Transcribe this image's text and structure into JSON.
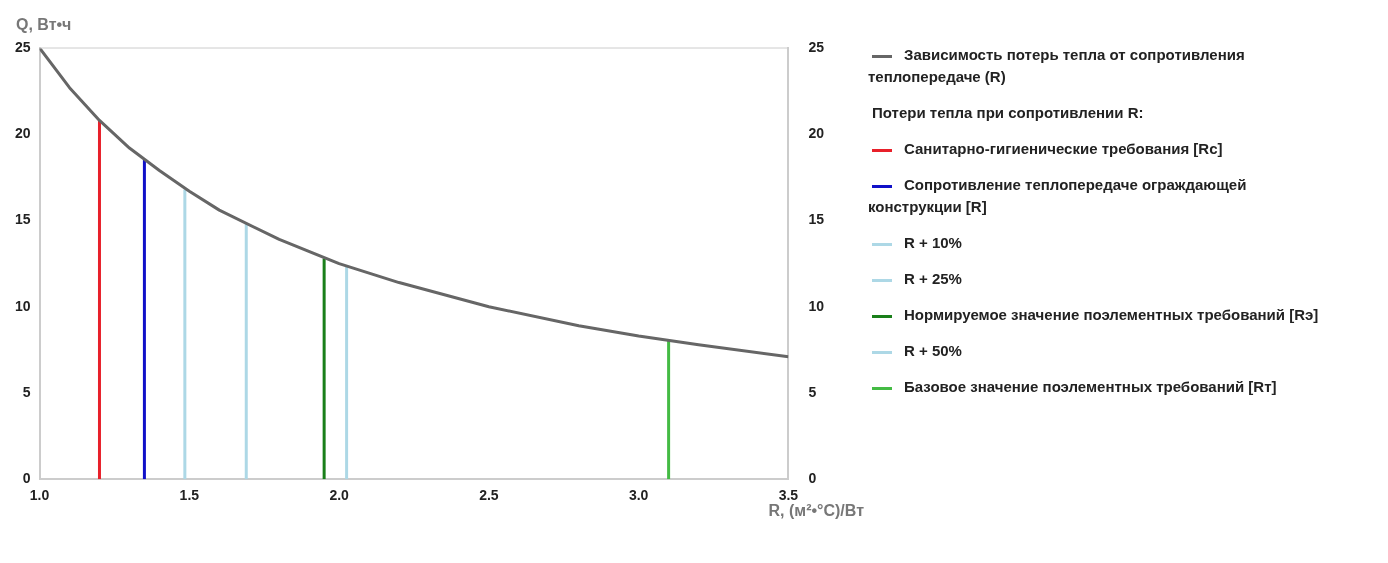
{
  "chart_data": {
    "type": "line",
    "xlabel": "R, (м²•°C)/Вт",
    "ylabel": "Q, Вт•ч",
    "legend_title": "Потери тепла при сопротивлении R:",
    "legend": "right",
    "marker": "none",
    "line_style": "solid",
    "xlim": [
      1,
      3.5
    ],
    "xticks": [
      {
        "value": 1,
        "label": "1.0"
      },
      {
        "value": 1.5,
        "label": "1.5"
      },
      {
        "value": 2,
        "label": "2.0"
      },
      {
        "value": 2.5,
        "label": "2.5"
      },
      {
        "value": 3,
        "label": "3.0"
      },
      {
        "value": 3.5,
        "label": "3.5"
      }
    ],
    "ylim": [
      0,
      25
    ],
    "yticks": [
      0,
      5,
      10,
      15,
      20,
      25
    ],
    "y2lim": [
      0,
      25
    ],
    "y2ticks": [
      0,
      5,
      10,
      15,
      20,
      25
    ],
    "series": [
      {
        "name": "Зависимость потерь тепла от сопротивления теплопередаче (R)",
        "color": "#666666",
        "x": [
          1,
          1.1,
          1.2,
          1.3,
          1.4,
          1.5,
          1.6,
          1.8,
          2,
          2.2,
          2.5,
          2.8,
          3,
          3.2,
          3.5
        ],
        "values": [
          25,
          22.7,
          20.8,
          19.2,
          17.9,
          16.7,
          15.6,
          13.9,
          12.5,
          11.4,
          10,
          8.9,
          8.3,
          7.8,
          7.1
        ]
      },
      {
        "name": "Санитарно-гигиенические требования [Rc]",
        "color": "#e8202a",
        "x": [
          1.2,
          1.2
        ],
        "values": [
          0,
          20.8
        ]
      },
      {
        "name": "Сопротивление теплопередаче ограждающей конструкции [R]",
        "color": "#1010c8",
        "x": [
          1.35,
          1.35
        ],
        "values": [
          0,
          18.5
        ]
      },
      {
        "name": "R + 10%",
        "color": "#add8e6",
        "x": [
          1.485,
          1.485
        ],
        "values": [
          0,
          16.8
        ]
      },
      {
        "name": "R + 25%",
        "color": "#add8e6",
        "x": [
          1.69,
          1.69
        ],
        "values": [
          0,
          14.8
        ]
      },
      {
        "name": "Нормируемое значение поэлементных требований [Rэ]",
        "color": "#1a7f1a",
        "x": [
          1.95,
          1.95
        ],
        "values": [
          0,
          12.8
        ]
      },
      {
        "name": "R + 50%",
        "color": "#add8e6",
        "x": [
          2.025,
          2.025
        ],
        "values": [
          0,
          12.3
        ]
      },
      {
        "name": "Базовое значение поэлементных требований [Rт]",
        "color": "#44bb44",
        "x": [
          3.1,
          3.1
        ],
        "values": [
          0,
          8.1
        ]
      }
    ]
  }
}
